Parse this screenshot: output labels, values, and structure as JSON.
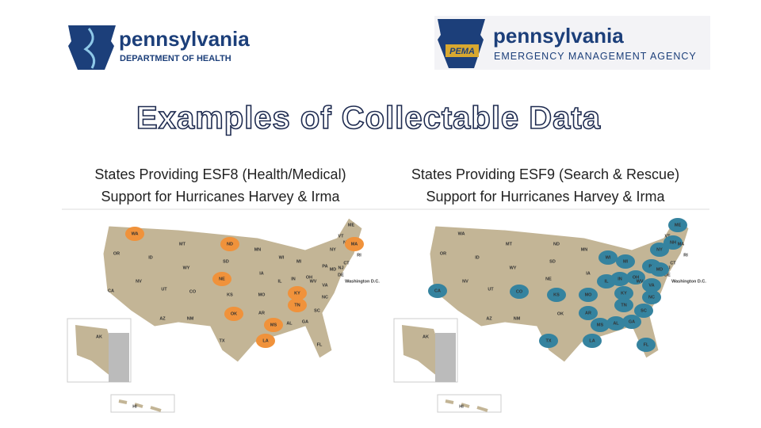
{
  "logos": [
    {
      "name": "pennsylvania",
      "subtitle": "DEPARTMENT OF HEALTH"
    },
    {
      "badge": "PEMA",
      "name": "pennsylvania",
      "subtitle": "EMERGENCY MANAGEMENT AGENCY"
    }
  ],
  "title": "Examples of Collectable Data",
  "maps": [
    {
      "caption": [
        "States Providing ESF8 (Health/Medical)",
        "Support for Hurricanes Harvey & Irma"
      ],
      "highlight_color": "#f0923b",
      "labels": [
        "WA",
        "OR",
        "CA",
        "ID",
        "NV",
        "MT",
        "WY",
        "UT",
        "AZ",
        "CO",
        "NM",
        "ND",
        "SD",
        "NE",
        "KS",
        "OK",
        "TX",
        "MN",
        "IA",
        "MO",
        "AR",
        "LA",
        "WI",
        "IL",
        "MI",
        "IN",
        "OH",
        "KY",
        "TN",
        "MS",
        "AL",
        "GA",
        "FL",
        "SC",
        "NC",
        "VA",
        "WV",
        "PA",
        "NY",
        "VT",
        "NH",
        "ME",
        "MA",
        "RI",
        "CT",
        "NJ",
        "DE",
        "MD",
        "Washington D.C.",
        "AK",
        "HI"
      ],
      "highlighted": [
        "WA",
        "ND",
        "NE",
        "OK",
        "LA",
        "MS",
        "TN",
        "KY",
        "MA"
      ]
    },
    {
      "caption": [
        "States Providing ESF9 (Search & Rescue)",
        "Support for Hurricanes Harvey & Irma"
      ],
      "highlight_color": "#35839f",
      "labels": [
        "WA",
        "OR",
        "CA",
        "ID",
        "NV",
        "MT",
        "WY",
        "UT",
        "AZ",
        "CO",
        "NM",
        "ND",
        "SD",
        "NE",
        "KS",
        "OK",
        "TX",
        "MN",
        "IA",
        "MO",
        "AR",
        "LA",
        "WI",
        "IL",
        "MI",
        "IN",
        "OH",
        "KY",
        "TN",
        "MS",
        "AL",
        "GA",
        "FL",
        "SC",
        "NC",
        "VA",
        "WV",
        "PA",
        "NY",
        "VT",
        "NH",
        "ME",
        "MA",
        "RI",
        "CT",
        "NJ",
        "DE",
        "MD",
        "Washington D.C.",
        "AK",
        "HI"
      ],
      "highlighted": [
        "CA",
        "CO",
        "KS",
        "TX",
        "WI",
        "MI",
        "IL",
        "IN",
        "OH",
        "KY",
        "TN",
        "MO",
        "AR",
        "LA",
        "MS",
        "AL",
        "GA",
        "SC",
        "NC",
        "VA",
        "FL",
        "PA",
        "NY",
        "ME",
        "NH",
        "MD"
      ]
    }
  ]
}
